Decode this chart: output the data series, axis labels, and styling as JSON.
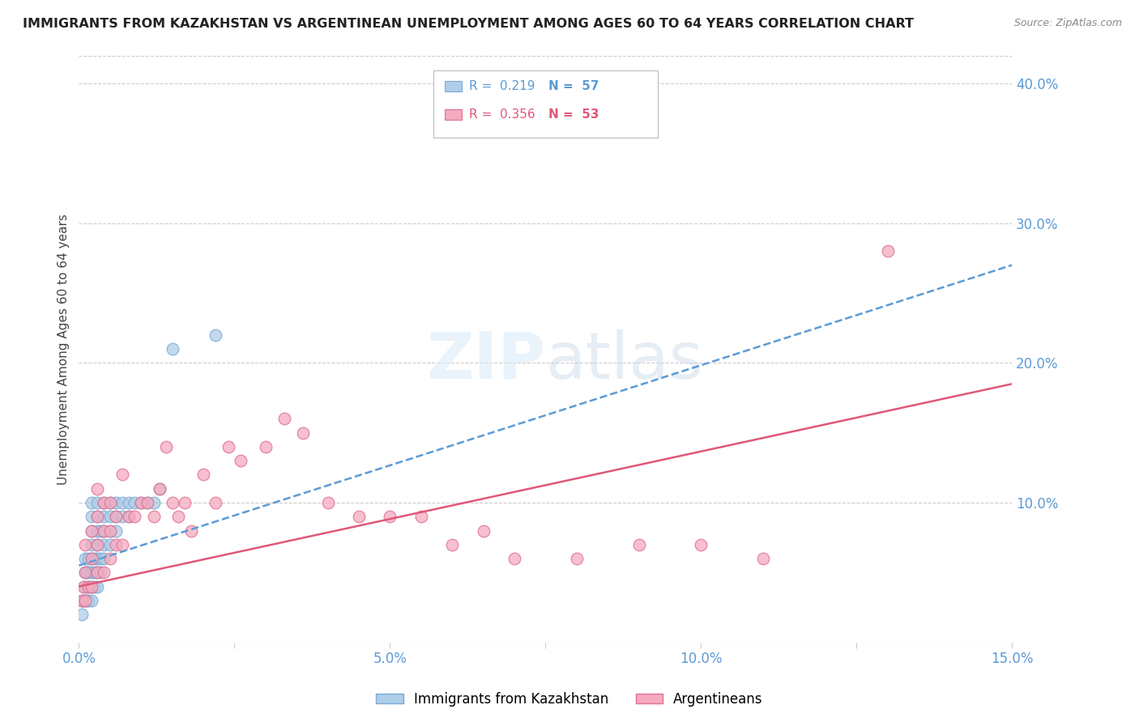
{
  "title": "IMMIGRANTS FROM KAZAKHSTAN VS ARGENTINEAN UNEMPLOYMENT AMONG AGES 60 TO 64 YEARS CORRELATION CHART",
  "source": "Source: ZipAtlas.com",
  "ylabel": "Unemployment Among Ages 60 to 64 years",
  "xlim": [
    0.0,
    0.15
  ],
  "ylim": [
    0.0,
    0.42
  ],
  "xticks": [
    0.0,
    0.025,
    0.05,
    0.075,
    0.1,
    0.125,
    0.15
  ],
  "xticklabels": [
    "0.0%",
    "",
    "5.0%",
    "",
    "10.0%",
    "",
    "15.0%"
  ],
  "yticks_right": [
    0.1,
    0.2,
    0.3,
    0.4
  ],
  "ytick_right_labels": [
    "10.0%",
    "20.0%",
    "30.0%",
    "40.0%"
  ],
  "series1_label": "Immigrants from Kazakhstan",
  "series2_label": "Argentineans",
  "series1_color": "#aecde8",
  "series2_color": "#f5aabf",
  "series1_edge": "#7aaad4",
  "series2_edge": "#e07090",
  "trend1_color": "#5b9bd5",
  "trend2_color": "#e05878",
  "background": "#ffffff",
  "grid_color": "#cccccc",
  "right_axis_color": "#5b9bd5",
  "title_color": "#222222",
  "kazakhstan_x": [
    0.0005,
    0.0005,
    0.0008,
    0.001,
    0.001,
    0.001,
    0.001,
    0.0012,
    0.0012,
    0.0015,
    0.0015,
    0.0015,
    0.0015,
    0.002,
    0.002,
    0.002,
    0.002,
    0.002,
    0.002,
    0.002,
    0.002,
    0.0025,
    0.0025,
    0.0025,
    0.003,
    0.003,
    0.003,
    0.003,
    0.003,
    0.003,
    0.003,
    0.0035,
    0.0035,
    0.0035,
    0.004,
    0.004,
    0.004,
    0.004,
    0.004,
    0.005,
    0.005,
    0.005,
    0.005,
    0.006,
    0.006,
    0.006,
    0.007,
    0.007,
    0.008,
    0.008,
    0.009,
    0.01,
    0.011,
    0.012,
    0.013,
    0.015,
    0.022
  ],
  "kazakhstan_y": [
    0.02,
    0.03,
    0.03,
    0.03,
    0.04,
    0.05,
    0.06,
    0.03,
    0.05,
    0.03,
    0.04,
    0.05,
    0.06,
    0.03,
    0.04,
    0.05,
    0.06,
    0.07,
    0.08,
    0.09,
    0.1,
    0.04,
    0.05,
    0.06,
    0.04,
    0.05,
    0.06,
    0.07,
    0.08,
    0.09,
    0.1,
    0.05,
    0.06,
    0.08,
    0.06,
    0.07,
    0.08,
    0.09,
    0.1,
    0.07,
    0.08,
    0.09,
    0.1,
    0.08,
    0.09,
    0.1,
    0.09,
    0.1,
    0.09,
    0.1,
    0.1,
    0.1,
    0.1,
    0.1,
    0.11,
    0.21,
    0.22
  ],
  "argentina_x": [
    0.0005,
    0.0008,
    0.001,
    0.001,
    0.001,
    0.0015,
    0.002,
    0.002,
    0.002,
    0.003,
    0.003,
    0.003,
    0.003,
    0.004,
    0.004,
    0.004,
    0.005,
    0.005,
    0.005,
    0.006,
    0.006,
    0.007,
    0.007,
    0.008,
    0.009,
    0.01,
    0.011,
    0.012,
    0.013,
    0.014,
    0.015,
    0.016,
    0.017,
    0.018,
    0.02,
    0.022,
    0.024,
    0.026,
    0.03,
    0.033,
    0.036,
    0.04,
    0.045,
    0.05,
    0.055,
    0.06,
    0.065,
    0.07,
    0.08,
    0.09,
    0.1,
    0.11,
    0.13
  ],
  "argentina_y": [
    0.03,
    0.04,
    0.03,
    0.05,
    0.07,
    0.04,
    0.04,
    0.06,
    0.08,
    0.05,
    0.07,
    0.09,
    0.11,
    0.05,
    0.08,
    0.1,
    0.06,
    0.08,
    0.1,
    0.07,
    0.09,
    0.07,
    0.12,
    0.09,
    0.09,
    0.1,
    0.1,
    0.09,
    0.11,
    0.14,
    0.1,
    0.09,
    0.1,
    0.08,
    0.12,
    0.1,
    0.14,
    0.13,
    0.14,
    0.16,
    0.15,
    0.1,
    0.09,
    0.09,
    0.09,
    0.07,
    0.08,
    0.06,
    0.06,
    0.07,
    0.07,
    0.06,
    0.28
  ],
  "kaz_trend_x0": 0.0,
  "kaz_trend_y0": 0.055,
  "kaz_trend_x1": 0.15,
  "kaz_trend_y1": 0.27,
  "arg_trend_x0": 0.0,
  "arg_trend_y0": 0.04,
  "arg_trend_x1": 0.15,
  "arg_trend_y1": 0.185
}
